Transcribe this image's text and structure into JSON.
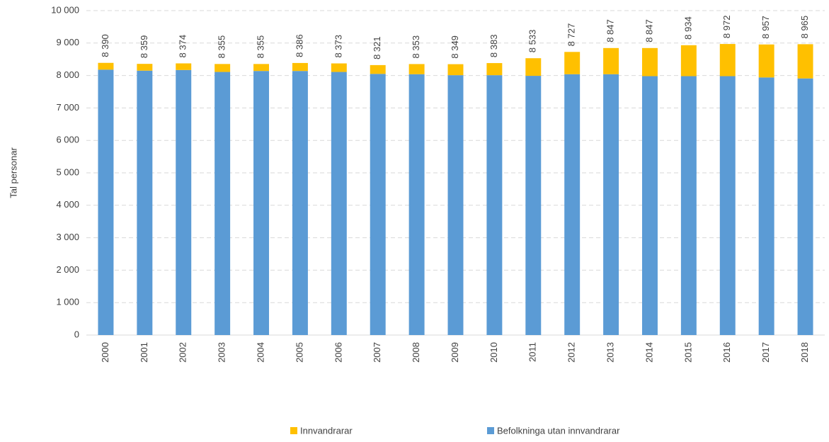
{
  "chart_data": {
    "type": "stacked-bar",
    "y_label": "Tal personar",
    "categories": [
      "2000",
      "2001",
      "2002",
      "2003",
      "2004",
      "2005",
      "2006",
      "2007",
      "2008",
      "2009",
      "2010",
      "2011",
      "2012",
      "2013",
      "2014",
      "2015",
      "2016",
      "2017",
      "2018"
    ],
    "series": [
      {
        "name": "Innvandrarar",
        "color": "#ffc000",
        "values": [
          210,
          209,
          204,
          245,
          215,
          246,
          263,
          271,
          313,
          339,
          373,
          543,
          687,
          807,
          867,
          954,
          992,
          1017,
          1055
        ]
      },
      {
        "name": "Befolkninga utan innvandrarar",
        "color": "#5b9bd5",
        "values": [
          8180,
          8150,
          8170,
          8110,
          8140,
          8140,
          8110,
          8050,
          8040,
          8010,
          8010,
          7990,
          8040,
          8040,
          7980,
          7980,
          7980,
          7940,
          7910
        ]
      }
    ],
    "totals": [
      8390,
      8359,
      8374,
      8355,
      8355,
      8386,
      8373,
      8321,
      8353,
      8349,
      8383,
      8533,
      8727,
      8847,
      8847,
      8934,
      8972,
      8957,
      8965
    ],
    "total_labels": [
      "8 390",
      "8 359",
      "8 374",
      "8 355",
      "8 355",
      "8 386",
      "8 373",
      "8 321",
      "8 353",
      "8 349",
      "8 383",
      "8 533",
      "8 727",
      "8 847",
      "8 847",
      "8 934",
      "8 972",
      "8 957",
      "8 965"
    ],
    "ylim": [
      0,
      10000
    ],
    "yticks": [
      0,
      {
        "value": 1000,
        "label": "1 000"
      },
      {
        "value": 2000,
        "label": "2 000"
      },
      {
        "value": 3000,
        "label": "3 000"
      },
      {
        "value": 4000,
        "label": "4 000"
      },
      {
        "value": 5000,
        "label": "5 000"
      },
      {
        "value": 6000,
        "label": "6 000"
      },
      {
        "value": 7000,
        "label": "7 000"
      },
      {
        "value": 8000,
        "label": "8 000"
      },
      {
        "value": 9000,
        "label": "9 000"
      },
      {
        "value": 10000,
        "label": "10 000"
      }
    ],
    "grid": true,
    "legend": "bottom"
  }
}
